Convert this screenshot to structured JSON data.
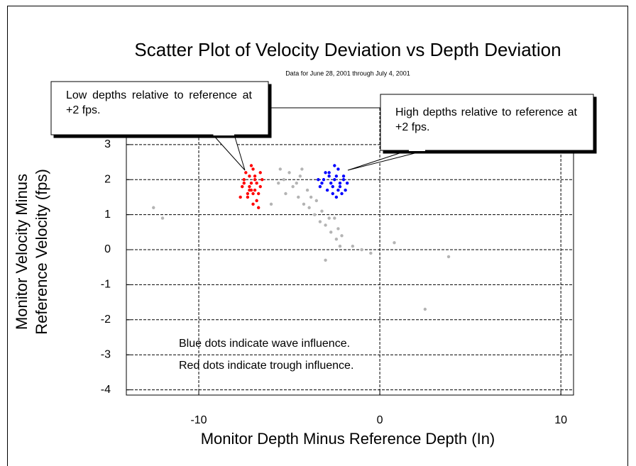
{
  "chart_data": {
    "type": "scatter",
    "title": "Scatter Plot of Velocity Deviation vs Depth Deviation",
    "subtitle": "Data for June 28, 2001 through July 4, 2001",
    "x_label": "Monitor Depth Minus Reference Depth (In)",
    "y_label": [
      "Monitor Velocity Minus",
      "Reference Velocity (fps)"
    ],
    "annotations": [
      "Low depths relative to reference at +2 fps.",
      "High depths relative to reference at +2 fps.",
      "Blue dots indicate wave influence.",
      "Red dots indicate trough influence."
    ],
    "xlim": [
      -14,
      10.7
    ],
    "ylim": [
      -4.15,
      4.05
    ],
    "xticks": [
      -10,
      0,
      10
    ],
    "yticks": [
      -4,
      -3,
      -2,
      -1,
      0,
      1,
      2,
      3
    ],
    "grid": true,
    "series": [
      {
        "color": "#b4b4b4",
        "x": [
          -5.5,
          -5.3,
          -5.6,
          -5.2,
          -4.8,
          -4.5,
          -4.2,
          -3.9,
          -3.6,
          -3.3,
          -3.0,
          -2.7,
          -2.4,
          -2.2,
          -2.3,
          -2.5,
          -4.0,
          -3.8,
          -3.5,
          -4.4,
          -5.0,
          -4.6,
          -3.2,
          -2.8,
          -2.1,
          -12.5,
          -12.0,
          -1.0,
          -0.5,
          0.8,
          3.8,
          2.5,
          -6.0,
          -3.0,
          -1.5,
          -4.3
        ],
        "y": [
          2.3,
          2.0,
          1.9,
          1.6,
          1.8,
          1.5,
          1.3,
          1.2,
          1.0,
          0.8,
          0.7,
          0.5,
          0.3,
          0.1,
          0.6,
          0.9,
          1.7,
          1.5,
          1.4,
          2.1,
          2.2,
          1.9,
          1.1,
          0.9,
          0.4,
          1.2,
          0.9,
          0.0,
          -0.1,
          0.2,
          -0.2,
          -1.7,
          1.3,
          -0.3,
          0.1,
          2.3
        ]
      },
      {
        "color": "#ff0000",
        "x": [
          -7.5,
          -7.2,
          -6.9,
          -6.6,
          -7.7,
          -7.0,
          -6.8,
          -7.3,
          -6.5,
          -7.1,
          -7.4,
          -6.7,
          -7.0,
          -7.6,
          -6.9,
          -7.2,
          -6.6,
          -7.1,
          -7.3,
          -6.8,
          -7.0,
          -7.5,
          -6.7,
          -7.2,
          -6.9,
          -7.1
        ],
        "y": [
          1.9,
          2.1,
          1.7,
          1.8,
          1.5,
          2.3,
          1.4,
          1.6,
          2.0,
          1.9,
          2.2,
          1.6,
          1.3,
          1.8,
          2.0,
          1.7,
          2.2,
          2.4,
          1.5,
          1.9,
          1.6,
          2.0,
          1.2,
          1.8,
          2.1,
          1.7
        ]
      },
      {
        "color": "#0000ff",
        "x": [
          -3.2,
          -2.8,
          -2.5,
          -2.2,
          -1.9,
          -3.0,
          -2.6,
          -2.3,
          -2.0,
          -3.3,
          -2.7,
          -2.4,
          -2.1,
          -2.9,
          -2.5,
          -2.2,
          -3.1,
          -2.6,
          -1.8,
          -2.4,
          -2.8,
          -2.0,
          -3.4,
          -2.3
        ],
        "y": [
          1.9,
          2.1,
          2.0,
          1.8,
          1.7,
          2.2,
          1.6,
          2.3,
          2.0,
          1.8,
          1.9,
          2.1,
          1.6,
          1.7,
          2.4,
          1.9,
          2.0,
          1.8,
          1.9,
          1.5,
          2.2,
          2.1,
          2.0,
          1.7
        ]
      }
    ]
  }
}
